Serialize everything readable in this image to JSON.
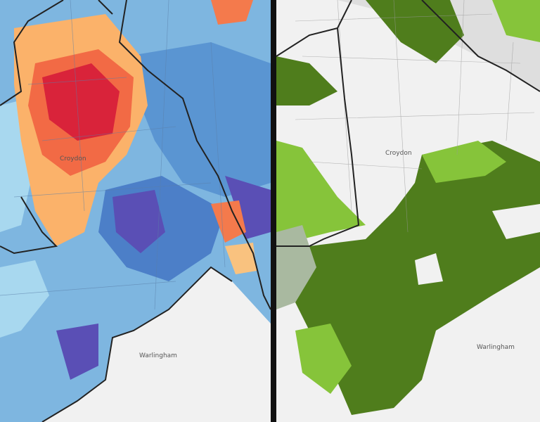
{
  "panels": [
    {
      "labels": {
        "town": "Croydon",
        "village": "Warlingham"
      }
    },
    {
      "labels": {
        "town": "Croydon",
        "village": "Warlingham"
      }
    }
  ]
}
